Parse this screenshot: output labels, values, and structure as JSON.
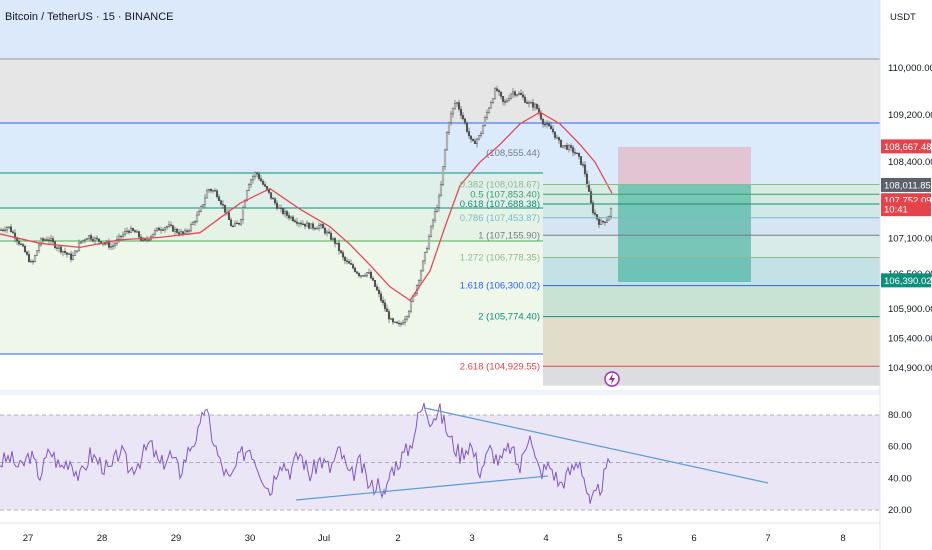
{
  "chart_data": {
    "type": "candlestick",
    "title": "Bitcoin / TetherUS · 15 · BINANCE",
    "currency": "USDT",
    "y_ticks": [
      "110,000.00",
      "109,200.00",
      "108,400.00",
      "107,100.00",
      "106,500.00",
      "105,900.00",
      "105,400.00",
      "104,900.00"
    ],
    "x_ticks": [
      "27",
      "28",
      "29",
      "30",
      "Jul",
      "2",
      "3",
      "4",
      "5",
      "6",
      "7",
      "8"
    ],
    "rsi_ticks": [
      "80.00",
      "60.00",
      "40.00",
      "20.00"
    ],
    "ylim": [
      104680,
      110600
    ],
    "rsi_ylim": [
      15,
      90
    ],
    "price_labels": [
      {
        "text": "108,667.48",
        "value": 108667.48,
        "color": "#e5434b"
      },
      {
        "text": "108,011.85",
        "value": 108011.85,
        "color": "#5d606b"
      },
      {
        "text": "107,752.09",
        "value": 107752.09,
        "color": "#e5434b"
      },
      {
        "text": "10:41",
        "value": 107600,
        "color": "#e5434b"
      },
      {
        "text": "106,390.02",
        "value": 106390.02,
        "color": "#0b8f7d"
      }
    ],
    "fib_levels": [
      {
        "label": "0.382 (108,018.67)",
        "value": 108018.67,
        "color": "#8fb98e"
      },
      {
        "label": "0.5 (107,853.40)",
        "value": 107853.4,
        "color": "#3e9a6f"
      },
      {
        "label": "0.618 (107,688.38)",
        "value": 107688.38,
        "color": "#1f8a72"
      },
      {
        "label": "0.786 (107,453.87)",
        "value": 107453.87,
        "color": "#7bb9c4"
      },
      {
        "label": "1 (107,155.90)",
        "value": 107155.9,
        "color": "#787b86"
      },
      {
        "label": "1.272 (106,778.35)",
        "value": 106778.35,
        "color": "#8fb98e"
      },
      {
        "label": "1.618 (106,300.02)",
        "value": 106300.02,
        "color": "#2962ff"
      },
      {
        "label": "2 (105,774.40)",
        "value": 105774.4,
        "color": "#0b8f7d"
      },
      {
        "label": "2.618 (104,929.55)",
        "value": 104929.55,
        "color": "#e5434b"
      }
    ],
    "fib_top_label": {
      "label": "(108,555.44)",
      "value": 108555.44
    },
    "price_series": [
      [
        0,
        107240
      ],
      [
        8,
        107310
      ],
      [
        16,
        107120
      ],
      [
        24,
        106900
      ],
      [
        32,
        106650
      ],
      [
        40,
        107050
      ],
      [
        48,
        107110
      ],
      [
        56,
        106970
      ],
      [
        64,
        106880
      ],
      [
        72,
        106760
      ],
      [
        80,
        107030
      ],
      [
        88,
        107150
      ],
      [
        96,
        107080
      ],
      [
        104,
        107030
      ],
      [
        112,
        106960
      ],
      [
        120,
        107120
      ],
      [
        128,
        107250
      ],
      [
        136,
        107200
      ],
      [
        144,
        107030
      ],
      [
        152,
        107180
      ],
      [
        160,
        107280
      ],
      [
        168,
        107310
      ],
      [
        176,
        107230
      ],
      [
        184,
        107170
      ],
      [
        192,
        107340
      ],
      [
        200,
        107560
      ],
      [
        208,
        107950
      ],
      [
        216,
        107890
      ],
      [
        224,
        107620
      ],
      [
        232,
        107290
      ],
      [
        240,
        107380
      ],
      [
        248,
        108030
      ],
      [
        256,
        108230
      ],
      [
        264,
        107990
      ],
      [
        272,
        107780
      ],
      [
        280,
        107580
      ],
      [
        288,
        107490
      ],
      [
        296,
        107410
      ],
      [
        304,
        107350
      ],
      [
        312,
        107300
      ],
      [
        320,
        107320
      ],
      [
        328,
        107170
      ],
      [
        336,
        107020
      ],
      [
        344,
        106730
      ],
      [
        352,
        106620
      ],
      [
        360,
        106480
      ],
      [
        368,
        106530
      ],
      [
        376,
        106250
      ],
      [
        384,
        105950
      ],
      [
        392,
        105660
      ],
      [
        400,
        105620
      ],
      [
        408,
        105850
      ],
      [
        416,
        106250
      ],
      [
        424,
        106750
      ],
      [
        432,
        107350
      ],
      [
        440,
        107850
      ],
      [
        448,
        109050
      ],
      [
        456,
        109450
      ],
      [
        464,
        109100
      ],
      [
        472,
        108700
      ],
      [
        480,
        108850
      ],
      [
        488,
        109300
      ],
      [
        496,
        109650
      ],
      [
        504,
        109380
      ],
      [
        512,
        109600
      ],
      [
        520,
        109550
      ],
      [
        528,
        109400
      ],
      [
        536,
        109350
      ],
      [
        544,
        109050
      ],
      [
        552,
        108950
      ],
      [
        560,
        108700
      ],
      [
        568,
        108650
      ],
      [
        576,
        108550
      ],
      [
        584,
        108300
      ],
      [
        592,
        107600
      ],
      [
        600,
        107350
      ],
      [
        608,
        107450
      ],
      [
        612,
        107640
      ]
    ],
    "ma_series": [
      [
        0,
        107180
      ],
      [
        40,
        107020
      ],
      [
        80,
        106950
      ],
      [
        120,
        107080
      ],
      [
        160,
        107120
      ],
      [
        200,
        107200
      ],
      [
        240,
        107700
      ],
      [
        270,
        107950
      ],
      [
        300,
        107600
      ],
      [
        330,
        107300
      ],
      [
        350,
        107000
      ],
      [
        370,
        106650
      ],
      [
        390,
        106280
      ],
      [
        410,
        106050
      ],
      [
        430,
        106550
      ],
      [
        445,
        107300
      ],
      [
        460,
        108000
      ],
      [
        480,
        108400
      ],
      [
        500,
        108700
      ],
      [
        520,
        109050
      ],
      [
        540,
        109250
      ],
      [
        560,
        109050
      ],
      [
        580,
        108700
      ],
      [
        595,
        108400
      ],
      [
        612,
        107870
      ]
    ],
    "rsi_series": [
      [
        0,
        50
      ],
      [
        10,
        53
      ],
      [
        20,
        46
      ],
      [
        30,
        55
      ],
      [
        40,
        42
      ],
      [
        50,
        58
      ],
      [
        60,
        47
      ],
      [
        70,
        52
      ],
      [
        80,
        40
      ],
      [
        90,
        55
      ],
      [
        100,
        50
      ],
      [
        110,
        44
      ],
      [
        120,
        58
      ],
      [
        130,
        45
      ],
      [
        140,
        52
      ],
      [
        150,
        62
      ],
      [
        160,
        48
      ],
      [
        170,
        55
      ],
      [
        180,
        44
      ],
      [
        190,
        60
      ],
      [
        200,
        70
      ],
      [
        205,
        86
      ],
      [
        210,
        72
      ],
      [
        220,
        50
      ],
      [
        230,
        38
      ],
      [
        240,
        54
      ],
      [
        250,
        60
      ],
      [
        260,
        45
      ],
      [
        270,
        32
      ],
      [
        280,
        52
      ],
      [
        290,
        45
      ],
      [
        300,
        56
      ],
      [
        310,
        42
      ],
      [
        320,
        52
      ],
      [
        330,
        46
      ],
      [
        340,
        58
      ],
      [
        350,
        40
      ],
      [
        360,
        50
      ],
      [
        370,
        34
      ],
      [
        380,
        38
      ],
      [
        385,
        27
      ],
      [
        390,
        44
      ],
      [
        400,
        52
      ],
      [
        410,
        60
      ],
      [
        420,
        82
      ],
      [
        425,
        86
      ],
      [
        430,
        78
      ],
      [
        440,
        82
      ],
      [
        450,
        65
      ],
      [
        460,
        55
      ],
      [
        470,
        62
      ],
      [
        480,
        45
      ],
      [
        490,
        58
      ],
      [
        500,
        50
      ],
      [
        510,
        60
      ],
      [
        520,
        46
      ],
      [
        530,
        72
      ],
      [
        535,
        52
      ],
      [
        540,
        44
      ],
      [
        550,
        48
      ],
      [
        560,
        36
      ],
      [
        570,
        44
      ],
      [
        580,
        52
      ],
      [
        585,
        38
      ],
      [
        590,
        22
      ],
      [
        600,
        34
      ],
      [
        610,
        50
      ]
    ],
    "rsi_lines": [
      [
        80.0
      ],
      [
        50.0
      ],
      [
        20.0
      ]
    ]
  }
}
